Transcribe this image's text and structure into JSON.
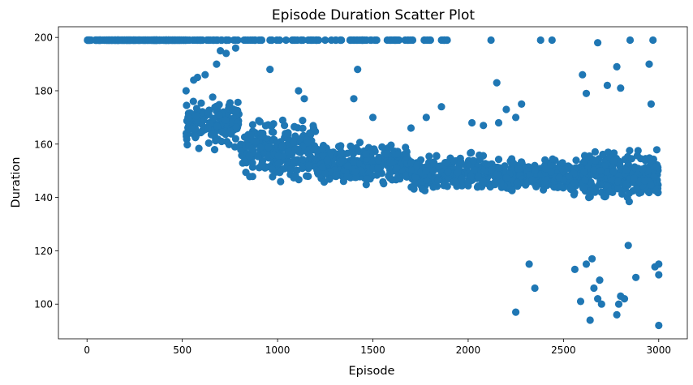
{
  "chart_data": {
    "type": "scatter",
    "title": "Episode Duration Scatter Plot",
    "xlabel": "Episode",
    "ylabel": "Duration",
    "xlim": [
      -150,
      3150
    ],
    "ylim": [
      87,
      204
    ],
    "xticks": [
      0,
      500,
      1000,
      1500,
      2000,
      2500,
      3000
    ],
    "yticks": [
      100,
      120,
      140,
      160,
      180,
      200
    ],
    "grid": false,
    "legend": "none",
    "series_color": "#1f77b4",
    "series": [
      {
        "bands": [
          {
            "x_range": [
              0,
              520
            ],
            "y": 199,
            "count": 260,
            "description": "capped at max duration"
          },
          {
            "x_range": [
              520,
              1900
            ],
            "y": 199,
            "count": 120
          },
          {
            "x_range": [
              520,
              800
            ],
            "y_range": [
              156,
              180
            ],
            "count": 150
          },
          {
            "x_range": [
              800,
              1200
            ],
            "y_range": [
              144,
              172
            ],
            "count": 260
          },
          {
            "x_range": [
              1200,
              1700
            ],
            "y_range": [
              142,
              162
            ],
            "count": 320
          },
          {
            "x_range": [
              1700,
              2300
            ],
            "y_range": [
              140,
              158
            ],
            "count": 330
          },
          {
            "x_range": [
              2300,
              2600
            ],
            "y_range": [
              140,
              156
            ],
            "count": 200
          },
          {
            "x_range": [
              2600,
              3000
            ],
            "y_range": [
              137,
              160
            ],
            "count": 320
          }
        ],
        "points": [
          [
            520,
            180
          ],
          [
            530,
            170
          ],
          [
            560,
            184
          ],
          [
            580,
            185
          ],
          [
            620,
            186
          ],
          [
            680,
            190
          ],
          [
            700,
            195
          ],
          [
            730,
            194
          ],
          [
            780,
            196
          ],
          [
            960,
            188
          ],
          [
            1110,
            180
          ],
          [
            1140,
            177
          ],
          [
            1400,
            177
          ],
          [
            1420,
            188
          ],
          [
            1500,
            170
          ],
          [
            1700,
            166
          ],
          [
            1780,
            170
          ],
          [
            1860,
            174
          ],
          [
            2020,
            168
          ],
          [
            2080,
            167
          ],
          [
            2150,
            183
          ],
          [
            2160,
            168
          ],
          [
            2200,
            173
          ],
          [
            2250,
            170
          ],
          [
            2280,
            175
          ],
          [
            2120,
            199
          ],
          [
            2380,
            199
          ],
          [
            2440,
            199
          ],
          [
            2680,
            198
          ],
          [
            2850,
            199
          ],
          [
            2970,
            199
          ],
          [
            2600,
            186
          ],
          [
            2620,
            179
          ],
          [
            2730,
            182
          ],
          [
            2780,
            189
          ],
          [
            2800,
            181
          ],
          [
            2950,
            190
          ],
          [
            2960,
            175
          ],
          [
            2250,
            97
          ],
          [
            2320,
            115
          ],
          [
            2350,
            106
          ],
          [
            2560,
            113
          ],
          [
            2590,
            101
          ],
          [
            2620,
            115
          ],
          [
            2640,
            94
          ],
          [
            2650,
            117
          ],
          [
            2660,
            106
          ],
          [
            2680,
            102
          ],
          [
            2690,
            109
          ],
          [
            2700,
            100
          ],
          [
            2780,
            96
          ],
          [
            2790,
            100
          ],
          [
            2800,
            103
          ],
          [
            2820,
            102
          ],
          [
            2840,
            122
          ],
          [
            2880,
            110
          ],
          [
            2980,
            114
          ],
          [
            3000,
            115
          ],
          [
            3000,
            111
          ],
          [
            3000,
            92
          ]
        ]
      }
    ]
  }
}
